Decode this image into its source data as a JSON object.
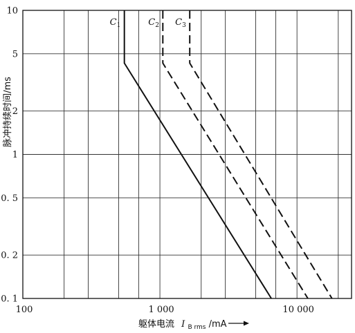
{
  "chart_data": {
    "type": "line",
    "xscale": "log",
    "yscale": "log",
    "xlim": [
      100,
      25000
    ],
    "ylim": [
      0.1,
      10
    ],
    "x_ticks": [
      100,
      1000,
      10000
    ],
    "x_tick_labels": [
      "100",
      "1 000",
      "10 000"
    ],
    "y_ticks": [
      0.1,
      0.2,
      0.5,
      1,
      2,
      5,
      10
    ],
    "y_tick_labels": [
      "0. 1",
      "0. 2",
      "0. 5",
      "1",
      "2",
      "5",
      "10"
    ],
    "x_grid": [
      100,
      200,
      300,
      500,
      700,
      1000,
      2000,
      3000,
      5000,
      7000,
      10000,
      20000
    ],
    "y_grid": [
      0.1,
      0.2,
      0.5,
      1,
      2,
      5,
      10
    ],
    "grid": true,
    "ylabel": "脉冲持续时间/ms",
    "xlabel": {
      "prefix": "躯体电流",
      "symbol": "I",
      "subscript": "B rms",
      "suffix": "/mA"
    },
    "series": [
      {
        "name": "C1",
        "label_main": "C",
        "label_sub": "1",
        "style": "solid",
        "points": [
          [
            550,
            10
          ],
          [
            550,
            4.3
          ],
          [
            6500,
            0.1
          ]
        ]
      },
      {
        "name": "C2",
        "label_main": "C",
        "label_sub": "2",
        "style": "dashed",
        "points": [
          [
            1050,
            10
          ],
          [
            1050,
            4.3
          ],
          [
            12000,
            0.1
          ]
        ]
      },
      {
        "name": "C3",
        "label_main": "C",
        "label_sub": "3",
        "style": "dashed",
        "points": [
          [
            1650,
            10
          ],
          [
            1650,
            4.3
          ],
          [
            18000,
            0.1
          ]
        ]
      }
    ]
  }
}
